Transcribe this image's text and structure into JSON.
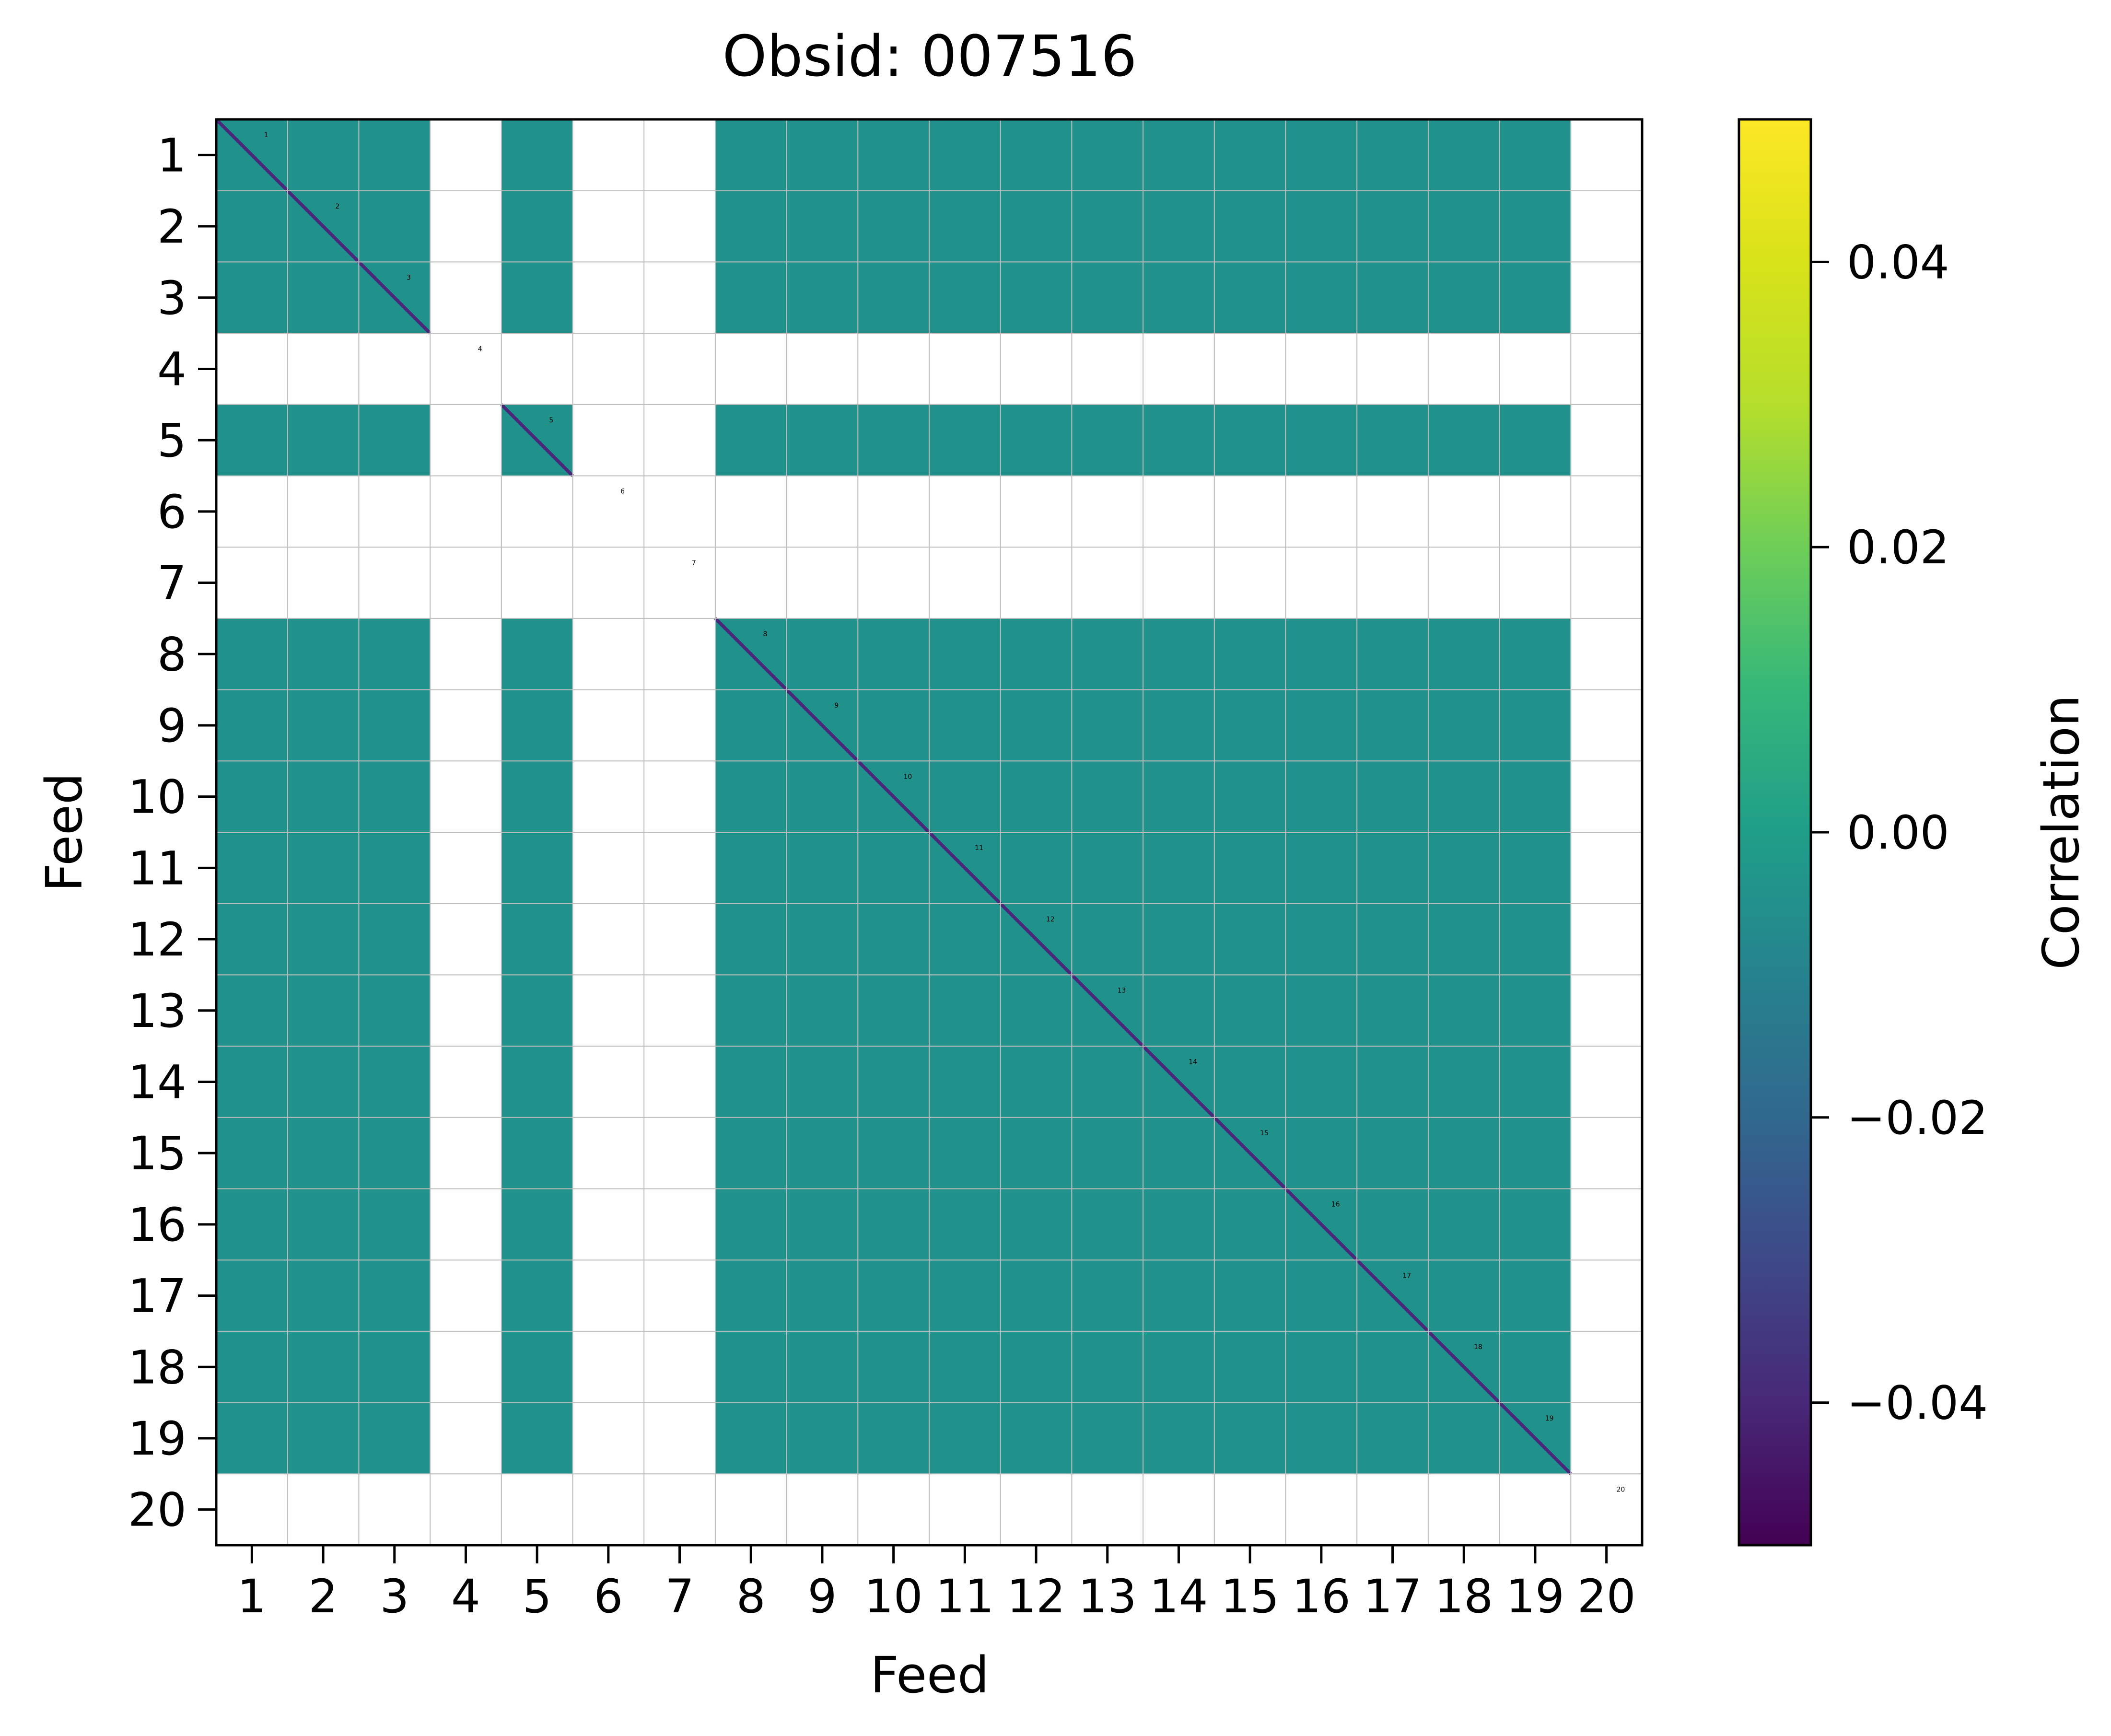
{
  "chart_data": {
    "type": "heatmap",
    "title": "Obsid: 007516",
    "xlabel": "Feed",
    "ylabel": "Feed",
    "x_tick_labels": [
      "1",
      "2",
      "3",
      "4",
      "5",
      "6",
      "7",
      "8",
      "9",
      "10",
      "11",
      "12",
      "13",
      "14",
      "15",
      "16",
      "17",
      "18",
      "19",
      "20"
    ],
    "y_tick_labels": [
      "1",
      "2",
      "3",
      "4",
      "5",
      "6",
      "7",
      "8",
      "9",
      "10",
      "11",
      "12",
      "13",
      "14",
      "15",
      "16",
      "17",
      "18",
      "19",
      "20"
    ],
    "active_feeds": [
      1,
      2,
      3,
      5,
      8,
      9,
      10,
      11,
      12,
      13,
      14,
      15,
      16,
      17,
      18,
      19
    ],
    "inactive_feeds": [
      4,
      6,
      7,
      20
    ],
    "off_diagonal_value": 0.0,
    "diagonal_value": -0.045,
    "colorbar": {
      "label": "Correlation",
      "colormap": "viridis",
      "vmin": -0.05,
      "vmax": 0.05,
      "ticks": [
        -0.04,
        -0.02,
        0.0,
        0.02,
        0.04
      ],
      "tick_labels": [
        "−0.04",
        "−0.02",
        "0.00",
        "0.02",
        "0.04"
      ]
    },
    "diagonal_labels": [
      "1",
      "2",
      "3",
      "4",
      "5",
      "6",
      "7",
      "8",
      "9",
      "10",
      "11",
      "12",
      "13",
      "14",
      "15",
      "16",
      "17",
      "18",
      "19",
      "20"
    ],
    "colors": {
      "cell": "#21918c",
      "diagonal": "#482878",
      "grid": "#bdbdbd",
      "background": "#ffffff"
    }
  }
}
